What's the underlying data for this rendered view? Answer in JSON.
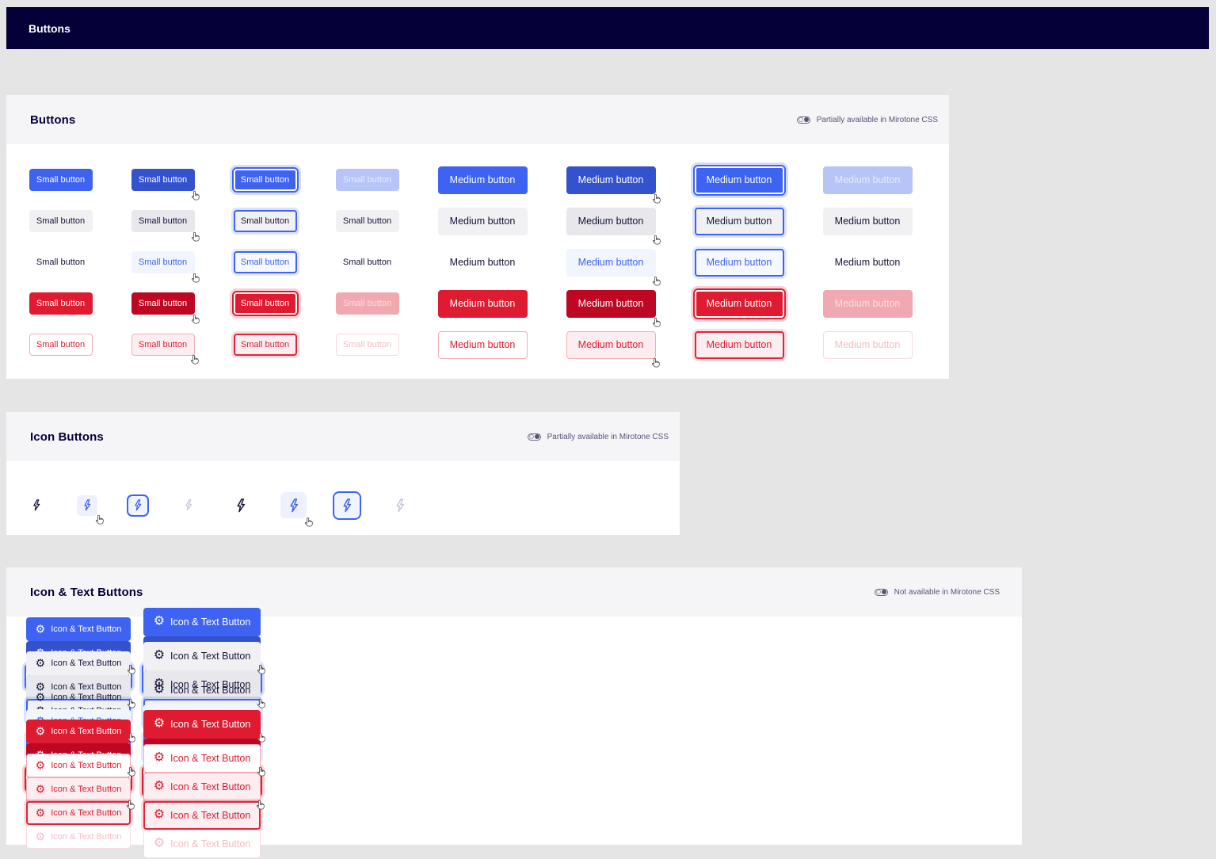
{
  "colors": {
    "brand_navy": "#050038",
    "primary_blue": "#3E63F2",
    "primary_blue_hover": "#3452CE",
    "danger_red": "#DF1B31",
    "danger_red_hover": "#BE0823",
    "page_background": "#E5E5E5",
    "panel_header_background": "#F5F5F7"
  },
  "top_bar": {
    "title": "Buttons"
  },
  "panels": {
    "buttons": {
      "title": "Buttons",
      "badge": "Partially available in Mirotone CSS",
      "badge_icon": "toggle-icon",
      "sizes": [
        {
          "id": "small",
          "label": "Small button"
        },
        {
          "id": "medium",
          "label": "Medium button"
        }
      ],
      "variants": [
        "primary",
        "secondary",
        "ghost",
        "danger",
        "danger_outline"
      ],
      "states": [
        "default",
        "hover",
        "focus",
        "disabled"
      ]
    },
    "icon_buttons": {
      "title": "Icon Buttons",
      "badge": "Partially available in Mirotone CSS",
      "badge_icon": "toggle-icon",
      "icon": "lightning-bolt-icon",
      "sizes": [
        "small",
        "medium"
      ],
      "states": [
        "default",
        "hover",
        "focus",
        "disabled"
      ]
    },
    "icon_text_buttons": {
      "title": "Icon & Text Buttons",
      "badge": "Not available in Mirotone CSS",
      "badge_icon": "toggle-icon",
      "icon": "gear-icon",
      "label": "Icon & Text Button",
      "sizes": [
        "small",
        "medium"
      ],
      "variants": [
        "primary",
        "secondary",
        "ghost",
        "danger",
        "danger_outline"
      ],
      "states": [
        "default",
        "hover",
        "focus",
        "disabled"
      ]
    }
  },
  "cursor_icon": "pointer-hand-cursor"
}
